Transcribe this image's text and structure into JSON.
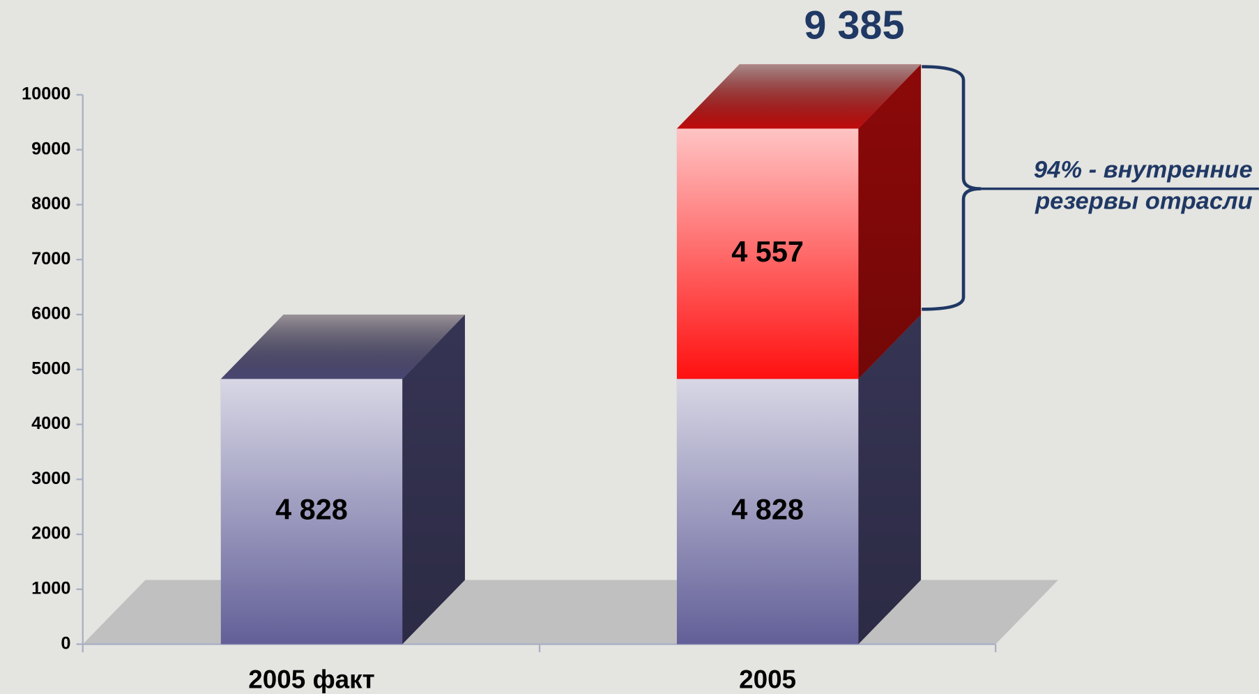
{
  "chart_data": {
    "type": "bar3d_stacked",
    "categories": [
      "2005 факт",
      "2005"
    ],
    "series": [
      {
        "color": "#625f98",
        "values": [
          4828,
          4828
        ],
        "value_labels": [
          "4 828",
          "4 828"
        ]
      },
      {
        "color": "#ff1010",
        "values": [
          null,
          4557
        ],
        "value_labels": [
          null,
          "4 557"
        ]
      }
    ],
    "totals": [
      null,
      9385
    ],
    "total_labels": [
      null,
      "9 385"
    ],
    "annotation": [
      "94% - внутренние",
      "резервы отрасли"
    ],
    "ylim": [
      0,
      10000
    ],
    "yticks": [
      0,
      1000,
      2000,
      3000,
      4000,
      5000,
      6000,
      7000,
      8000,
      9000,
      10000
    ]
  }
}
